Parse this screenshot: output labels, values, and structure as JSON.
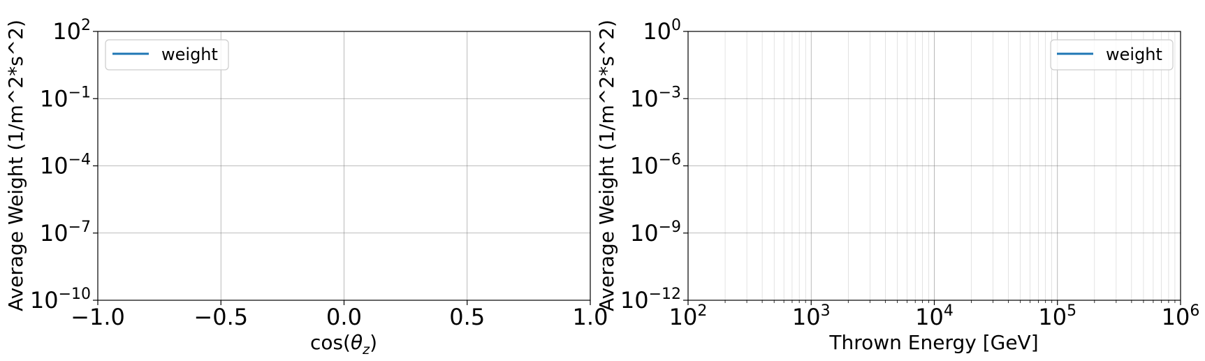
{
  "chart_data": [
    {
      "type": "line",
      "title": "",
      "xlabel_pre": "cos(",
      "xlabel_symbol": "θ",
      "xlabel_sub": "z",
      "xlabel_post": ")",
      "ylabel": "Average Weight (1/m^2*s^2)",
      "x_scale": "linear",
      "y_scale": "log",
      "xlim": [
        -1.0,
        1.0
      ],
      "ylim": [
        1e-10,
        100
      ],
      "x_ticks": [
        {
          "value": -1.0,
          "label": "−1.0"
        },
        {
          "value": -0.5,
          "label": "−0.5"
        },
        {
          "value": 0.0,
          "label": "0.0"
        },
        {
          "value": 0.5,
          "label": "0.5"
        },
        {
          "value": 1.0,
          "label": "1.0"
        }
      ],
      "y_ticks": [
        {
          "value": 1e-10,
          "base": "10",
          "exp": "−10"
        },
        {
          "value": 1e-07,
          "base": "10",
          "exp": "−7"
        },
        {
          "value": 0.0001,
          "base": "10",
          "exp": "−4"
        },
        {
          "value": 0.1,
          "base": "10",
          "exp": "−1"
        },
        {
          "value": 100,
          "base": "10",
          "exp": "2"
        }
      ],
      "grid": true,
      "legend_position": "upper left",
      "series": [
        {
          "name": "weight",
          "color": "#1f77b4",
          "x": [],
          "y": []
        }
      ]
    },
    {
      "type": "line",
      "title": "",
      "xlabel": "Thrown Energy [GeV]",
      "ylabel": "Average Weight (1/m^2*s^2)",
      "x_scale": "log",
      "y_scale": "log",
      "xlim": [
        100,
        1000000
      ],
      "ylim": [
        1e-12,
        1
      ],
      "x_ticks": [
        {
          "value": 100,
          "base": "10",
          "exp": "2"
        },
        {
          "value": 1000,
          "base": "10",
          "exp": "3"
        },
        {
          "value": 10000,
          "base": "10",
          "exp": "4"
        },
        {
          "value": 100000,
          "base": "10",
          "exp": "5"
        },
        {
          "value": 1000000,
          "base": "10",
          "exp": "6"
        }
      ],
      "y_ticks": [
        {
          "value": 1e-12,
          "base": "10",
          "exp": "−12"
        },
        {
          "value": 1e-09,
          "base": "10",
          "exp": "−9"
        },
        {
          "value": 1e-06,
          "base": "10",
          "exp": "−6"
        },
        {
          "value": 0.001,
          "base": "10",
          "exp": "−3"
        },
        {
          "value": 1,
          "base": "10",
          "exp": "0"
        }
      ],
      "grid": true,
      "minor_grid_x": true,
      "legend_position": "upper right",
      "series": [
        {
          "name": "weight",
          "color": "#1f77b4",
          "x": [],
          "y": []
        }
      ]
    }
  ]
}
